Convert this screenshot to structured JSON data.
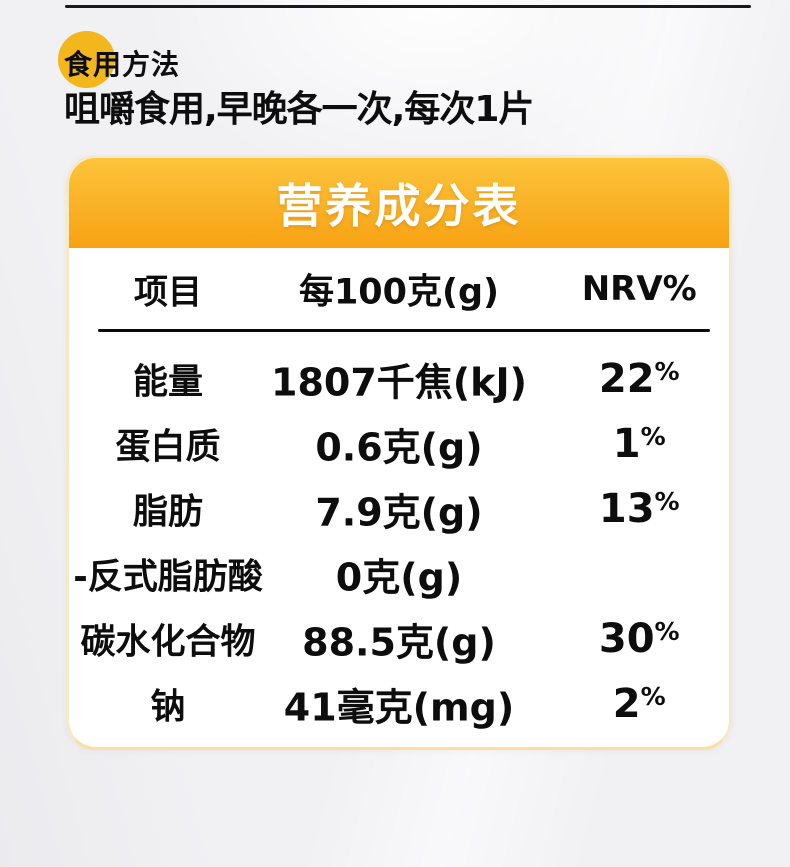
{
  "colors": {
    "badge_circle": "#F3B71D",
    "header_gradient_top": "#FCC43C",
    "header_gradient_bottom": "#F7A213",
    "card_border": "#F6E9C8",
    "text": "#0D0D0D",
    "title_text": "#FFFFFF"
  },
  "usage": {
    "badge_label": "食用方法",
    "instruction": "咀嚼食用,早晚各一次,每次1片"
  },
  "nutrition": {
    "title": "营养成分表",
    "columns": [
      "项目",
      "每100克(g)",
      "NRV%"
    ],
    "rows": [
      {
        "item": "能量",
        "value": "1807千焦(kJ)",
        "nrv": "22%"
      },
      {
        "item": "蛋白质",
        "value": "0.6克(g)",
        "nrv": "1%"
      },
      {
        "item": "脂肪",
        "value": "7.9克(g)",
        "nrv": "13%"
      },
      {
        "item": "-反式脂肪酸",
        "value": "0克(g)",
        "nrv": ""
      },
      {
        "item": "碳水化合物",
        "value": "88.5克(g)",
        "nrv": "30%"
      },
      {
        "item": "钠",
        "value": "41毫克(mg)",
        "nrv": "2%"
      }
    ]
  }
}
